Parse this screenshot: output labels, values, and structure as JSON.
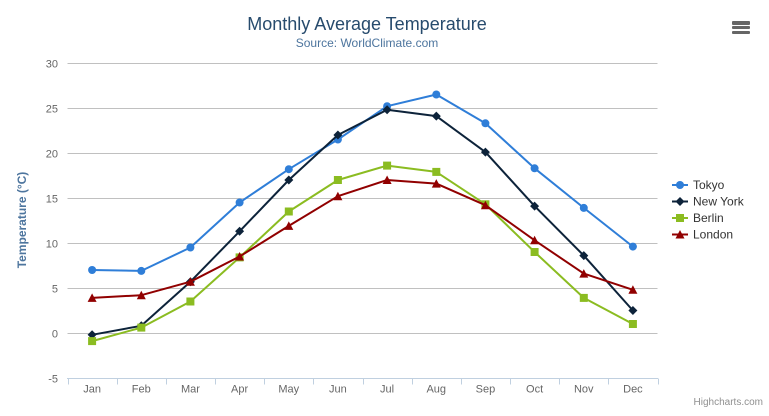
{
  "chart": {
    "title": "Monthly Average Temperature",
    "subtitle": "Source: WorldClimate.com",
    "credit": "Highcharts.com",
    "menu_icon": "hamburger-menu-icon"
  },
  "colors": {
    "title": "#274b6d",
    "subtitle": "#4d759e",
    "axis_label": "#666666",
    "y_axis_title": "#4d759e",
    "grid_line": "#c0c0c0",
    "axis_line": "#c0d0e0",
    "legend_text": "#333333",
    "credit": "#909090",
    "menu_icon": "#666666",
    "background": "#ffffff"
  },
  "legend": {
    "items": [
      "Tokyo",
      "New York",
      "Berlin",
      "London"
    ]
  },
  "chart_data": {
    "type": "line",
    "title": "Monthly Average Temperature",
    "subtitle": "Source: WorldClimate.com",
    "categories": [
      "Jan",
      "Feb",
      "Mar",
      "Apr",
      "May",
      "Jun",
      "Jul",
      "Aug",
      "Sep",
      "Oct",
      "Nov",
      "Dec"
    ],
    "series": [
      {
        "name": "Tokyo",
        "color": "#2f7ed8",
        "marker": "circle",
        "values": [
          7.0,
          6.9,
          9.5,
          14.5,
          18.2,
          21.5,
          25.2,
          26.5,
          23.3,
          18.3,
          13.9,
          9.6
        ]
      },
      {
        "name": "New York",
        "color": "#0d233a",
        "marker": "diamond",
        "values": [
          -0.2,
          0.8,
          5.7,
          11.3,
          17.0,
          22.0,
          24.8,
          24.1,
          20.1,
          14.1,
          8.6,
          2.5
        ]
      },
      {
        "name": "Berlin",
        "color": "#8bbc21",
        "marker": "square",
        "values": [
          -0.9,
          0.6,
          3.5,
          8.4,
          13.5,
          17.0,
          18.6,
          17.9,
          14.3,
          9.0,
          3.9,
          1.0
        ]
      },
      {
        "name": "London",
        "color": "#910000",
        "marker": "triangle",
        "values": [
          3.9,
          4.2,
          5.7,
          8.5,
          11.9,
          15.2,
          17.0,
          16.6,
          14.2,
          10.3,
          6.6,
          4.8
        ]
      }
    ],
    "xlabel": "",
    "ylabel": "Temperature (°C)",
    "ylim": [
      -5,
      30
    ],
    "ytick_step": 5,
    "grid": "horizontal",
    "legend_position": "right"
  }
}
